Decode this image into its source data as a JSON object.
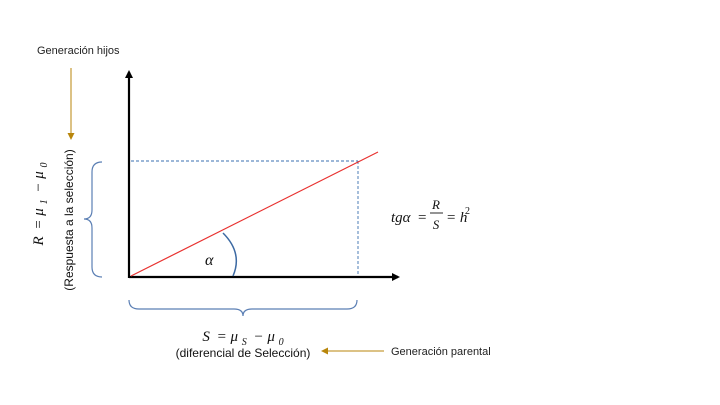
{
  "labels": {
    "offspring_generation": "Generación hijos",
    "parental_generation": "Generación parental"
  },
  "y_axis": {
    "formula_R": "R",
    "formula_eq": "= μ",
    "formula_sub1": "1",
    "formula_minus": "− μ",
    "formula_sub0": "0",
    "caption": "(Respuesta a la selección)"
  },
  "x_axis": {
    "formula_S": "S",
    "formula_eq": "= μ",
    "formula_subS": "S",
    "formula_minus": "− μ",
    "formula_sub0": "0",
    "caption": "(diferencial de Selección)"
  },
  "angle_label": "α",
  "heritability": {
    "lhs": "tgα",
    "eq1": "=",
    "numerator": "R",
    "denominator": "S",
    "eq2": "= h",
    "exponent": "2"
  },
  "colors": {
    "axis": "#000000",
    "regression_line": "#e8312f",
    "dashed_guides": "#3a6fb0",
    "braces": "#5b7fb4",
    "angle_arc": "#3d6aa3",
    "arrows": "#b8860b"
  }
}
